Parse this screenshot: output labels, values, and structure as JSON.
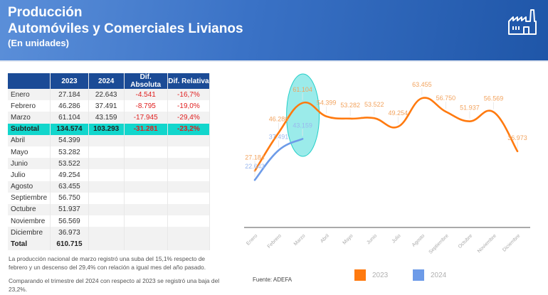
{
  "header": {
    "title_line1": "Producción",
    "title_line2": "Automóviles y Comerciales Livianos",
    "subtitle": "(En unidades)",
    "icon": "factory-icon"
  },
  "table": {
    "columns": [
      "",
      "2023",
      "2024",
      "Dif. Absoluta",
      "Dif. Relativa"
    ],
    "rows": [
      {
        "month": "Enero",
        "y2023": "27.184",
        "y2024": "22.643",
        "abs": "-4.541",
        "rel": "-16,7%"
      },
      {
        "month": "Febrero",
        "y2023": "46.286",
        "y2024": "37.491",
        "abs": "-8.795",
        "rel": "-19,0%"
      },
      {
        "month": "Marzo",
        "y2023": "61.104",
        "y2024": "43.159",
        "abs": "-17.945",
        "rel": "-29,4%"
      },
      {
        "month": "Subtotal",
        "y2023": "134.574",
        "y2024": "103.293",
        "abs": "-31.281",
        "rel": "-23,2%"
      },
      {
        "month": "Abril",
        "y2023": "54.399"
      },
      {
        "month": "Mayo",
        "y2023": "53.282"
      },
      {
        "month": "Junio",
        "y2023": "53.522"
      },
      {
        "month": "Julio",
        "y2023": "49.254"
      },
      {
        "month": "Agosto",
        "y2023": "63.455"
      },
      {
        "month": "Septiembre",
        "y2023": "56.750"
      },
      {
        "month": "Octubre",
        "y2023": "51.937"
      },
      {
        "month": "Noviembre",
        "y2023": "56.569"
      },
      {
        "month": "Diciembre",
        "y2023": "36.973"
      },
      {
        "month": "Total",
        "y2023": "610.715"
      }
    ]
  },
  "notes": {
    "note1": "La producción nacional de marzo registró una suba del 15,1% respecto de febrero y un descenso del 29,4% con relación a igual mes del año pasado.",
    "note2": "Comparando el trimestre del 2024 con respecto al 2023 se registró una baja del 23,2%."
  },
  "source": "Fuente: ADEFA",
  "colors": {
    "header_bg": "#3a72c6",
    "table_header": "#1b4b96",
    "subtotal": "#12d6cc",
    "negative": "#e02020",
    "series_2023": "#ff7a0f",
    "series_2024": "#6d9be8",
    "highlight": "#8ae8e6"
  },
  "chart_data": {
    "type": "line",
    "title": "",
    "xlabel": "",
    "ylabel": "",
    "ylim": [
      0,
      65000
    ],
    "grid": false,
    "legend": "bottom",
    "categories": [
      "Enero",
      "Febrero",
      "Marzo",
      "Abril",
      "Mayo",
      "Junio",
      "Julio",
      "Agosto",
      "Septiembre",
      "Octubre",
      "Noviembre",
      "Diciembre"
    ],
    "series": [
      {
        "name": "2023",
        "values": [
          27184,
          46286,
          61104,
          54399,
          53282,
          53522,
          49254,
          63455,
          56750,
          51937,
          56569,
          36973
        ],
        "labels": [
          "27.184",
          "46.286",
          "61.104",
          "54.399",
          "53.282",
          "53.522",
          "49.254",
          "63.455",
          "56.750",
          "51.937",
          "56.569",
          "36.973"
        ]
      },
      {
        "name": "2024",
        "values": [
          22643,
          37491,
          43159
        ],
        "labels": [
          "22.643",
          "37.491",
          "43.159"
        ]
      }
    ],
    "annotations": [
      {
        "type": "ellipse-highlight",
        "category": "Marzo"
      }
    ]
  }
}
